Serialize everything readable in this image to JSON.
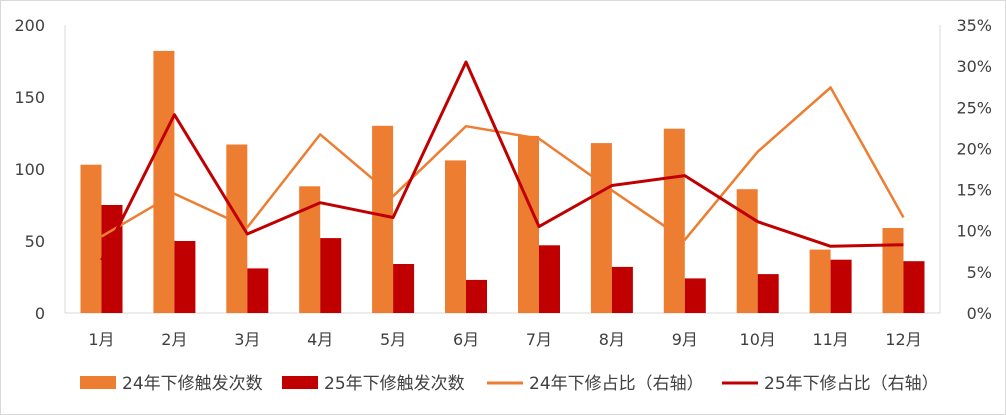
{
  "chart_data": {
    "type": "bar",
    "categories": [
      "1月",
      "2月",
      "3月",
      "4月",
      "5月",
      "6月",
      "7月",
      "8月",
      "9月",
      "10月",
      "11月",
      "12月"
    ],
    "left_axis": {
      "min": 0,
      "max": 200,
      "ticks": [
        0,
        50,
        100,
        150,
        200
      ],
      "tick_labels": [
        "0",
        "50",
        "100",
        "150",
        "200"
      ]
    },
    "right_axis": {
      "min": 0,
      "max": 35,
      "ticks": [
        0,
        5,
        10,
        15,
        20,
        25,
        30,
        35
      ],
      "tick_labels": [
        "0%",
        "5%",
        "10%",
        "15%",
        "20%",
        "25%",
        "30%",
        "35%"
      ]
    },
    "series": [
      {
        "name": "24年下修触发次数",
        "kind": "bar",
        "axis": "left",
        "color": "#ED7D31",
        "values": [
          103,
          182,
          117,
          88,
          130,
          106,
          123,
          118,
          128,
          86,
          44,
          59
        ]
      },
      {
        "name": "25年下修触发次数",
        "kind": "bar",
        "axis": "left",
        "color": "#C00000",
        "values": [
          75,
          50,
          31,
          52,
          34,
          23,
          47,
          32,
          24,
          27,
          37,
          36
        ]
      },
      {
        "name": "24年下修占比（右轴）",
        "kind": "line",
        "axis": "right",
        "color": "#ED7D31",
        "values": [
          9.3,
          14.5,
          10.4,
          21.7,
          14.2,
          22.7,
          21.2,
          14.9,
          8.9,
          19.6,
          27.4,
          11.6
        ]
      },
      {
        "name": "25年下修占比（右轴）",
        "kind": "line",
        "axis": "right",
        "color": "#C00000",
        "values": [
          6.4,
          24.1,
          9.6,
          13.4,
          11.6,
          30.5,
          10.5,
          15.5,
          16.7,
          11.1,
          8.1,
          8.3
        ]
      }
    ],
    "grid": false,
    "legend_position": "bottom"
  }
}
